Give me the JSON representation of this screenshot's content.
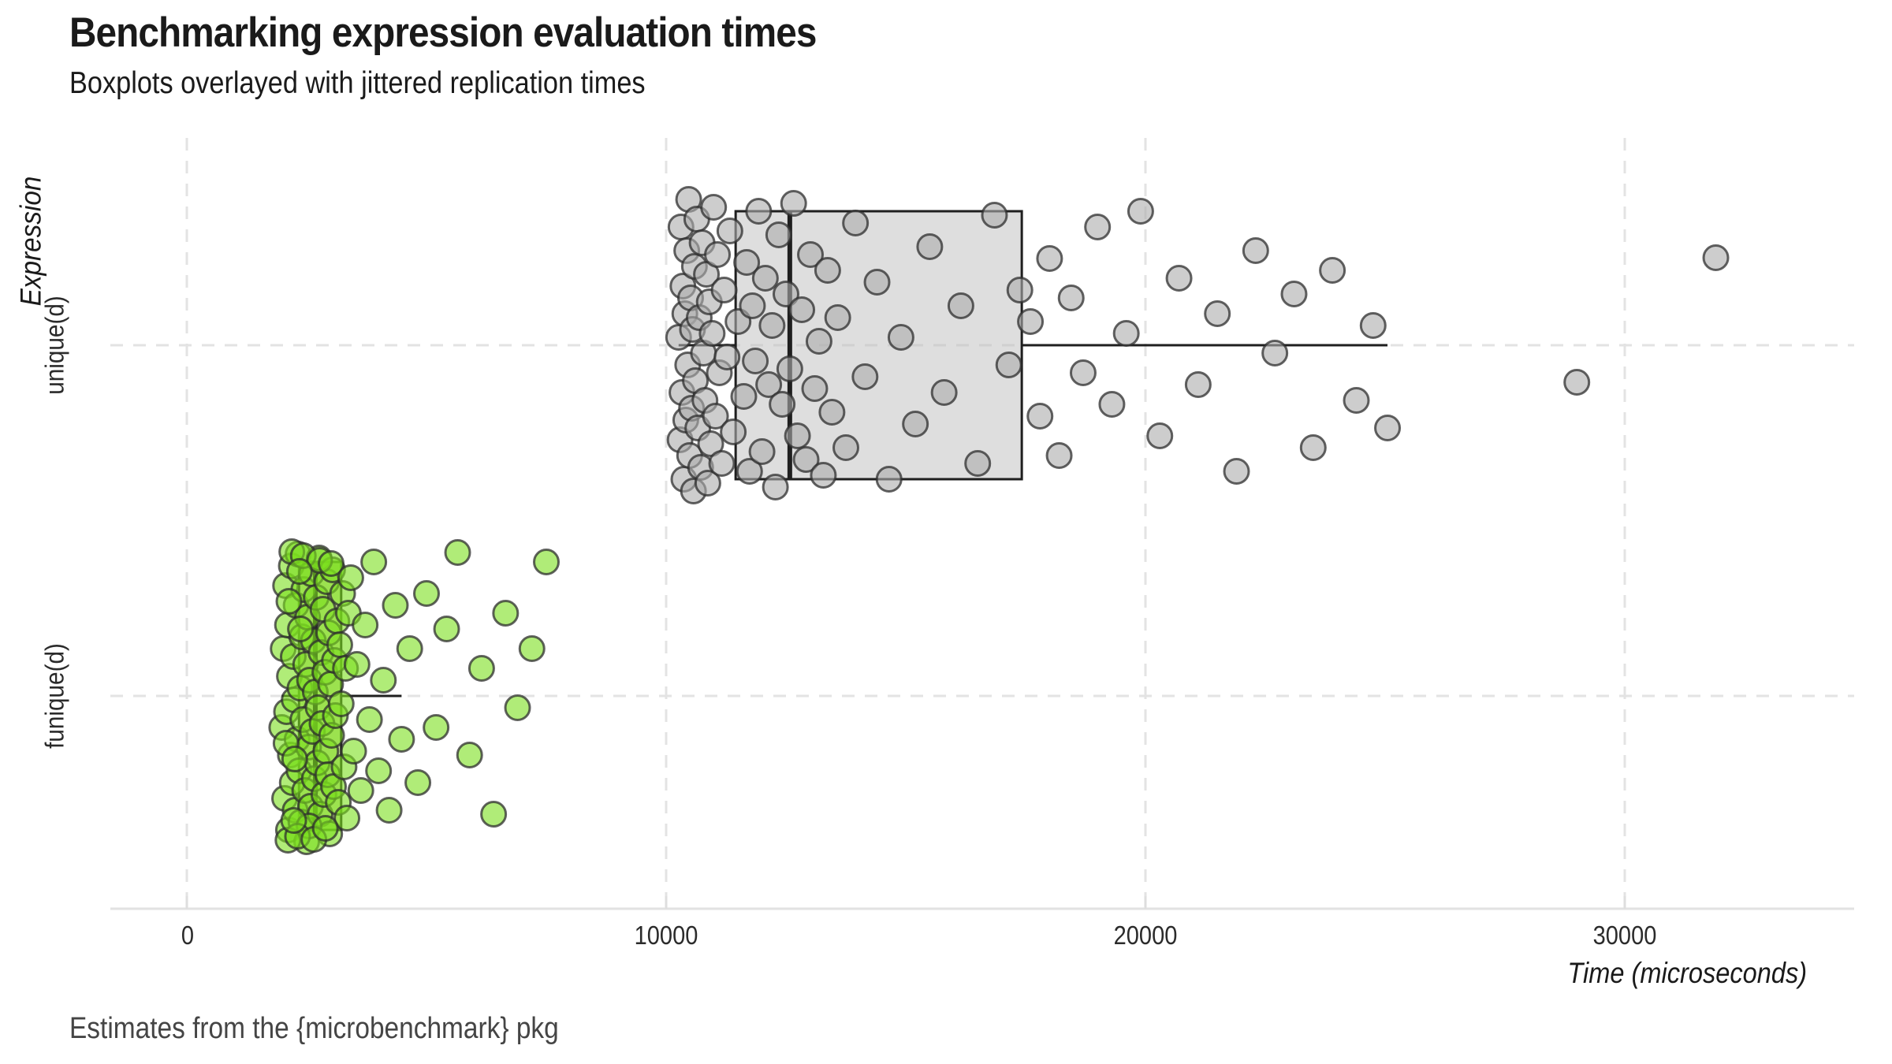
{
  "chart_data": {
    "type": "boxplot",
    "title": "Benchmarking expression evaluation times",
    "subtitle": "Boxplots overlayed with jittered replication times",
    "caption": "Estimates from the {microbenchmark} pkg",
    "xlabel": "Time (microseconds)",
    "ylabel": "Expression",
    "x_ticks": [
      0,
      10000,
      20000,
      30000
    ],
    "x_tick_labels": [
      "0",
      "10000",
      "20000",
      "30000"
    ],
    "xlim": [
      -1600,
      34800
    ],
    "grid": "dashed",
    "legend": "none",
    "categories": [
      "unique(d)",
      "funique(d)"
    ],
    "colors": {
      "grid": "#e3e3e3",
      "box_stroke": "#1f1f1f",
      "gray_fill": "#bebebe",
      "gray_point": "#acacac",
      "green_fill": "#9acd32",
      "green_point": "#7cdf1e",
      "caption_text": "#454545"
    },
    "series": [
      {
        "name": "unique(d)",
        "box_fill": "#bebebe",
        "point_fill": "#acacac",
        "box": {
          "whisker_low": 10260,
          "q1": 11450,
          "median": 12580,
          "q3": 17420,
          "whisker_high": 25050
        },
        "outliers": [
          29000,
          31900
        ],
        "points": [
          [
            10260,
            -10
          ],
          [
            10290,
            120
          ],
          [
            10310,
            -150
          ],
          [
            10330,
            60
          ],
          [
            10350,
            -75
          ],
          [
            10370,
            170
          ],
          [
            10390,
            -40
          ],
          [
            10410,
            95
          ],
          [
            10430,
            -120
          ],
          [
            10450,
            25
          ],
          [
            10470,
            -185
          ],
          [
            10490,
            140
          ],
          [
            10510,
            -60
          ],
          [
            10530,
            80
          ],
          [
            10550,
            -20
          ],
          [
            10570,
            185
          ],
          [
            10590,
            -100
          ],
          [
            10610,
            45
          ],
          [
            10640,
            -160
          ],
          [
            10660,
            105
          ],
          [
            10690,
            -35
          ],
          [
            10720,
            155
          ],
          [
            10750,
            -130
          ],
          [
            10780,
            10
          ],
          [
            10810,
            70
          ],
          [
            10840,
            -90
          ],
          [
            10870,
            175
          ],
          [
            10900,
            -55
          ],
          [
            10930,
            125
          ],
          [
            10960,
            -15
          ],
          [
            10990,
            -175
          ],
          [
            11030,
            90
          ],
          [
            11070,
            -115
          ],
          [
            11110,
            35
          ],
          [
            11160,
            150
          ],
          [
            11210,
            -70
          ],
          [
            11270,
            15
          ],
          [
            11330,
            -145
          ],
          [
            11400,
            110
          ],
          [
            11500,
            -30
          ],
          [
            11620,
            65
          ],
          [
            11680,
            -105
          ],
          [
            11740,
            160
          ],
          [
            11800,
            -50
          ],
          [
            11860,
            20
          ],
          [
            11930,
            -170
          ],
          [
            12000,
            135
          ],
          [
            12070,
            -85
          ],
          [
            12140,
            50
          ],
          [
            12210,
            -25
          ],
          [
            12280,
            180
          ],
          [
            12350,
            -140
          ],
          [
            12420,
            75
          ],
          [
            12500,
            -65
          ],
          [
            12580,
            30
          ],
          [
            12660,
            -180
          ],
          [
            12740,
            115
          ],
          [
            12830,
            -45
          ],
          [
            12920,
            145
          ],
          [
            13010,
            -115
          ],
          [
            13100,
            55
          ],
          [
            13190,
            -5
          ],
          [
            13280,
            165
          ],
          [
            13370,
            -95
          ],
          [
            13460,
            85
          ],
          [
            13580,
            -35
          ],
          [
            13750,
            130
          ],
          [
            13950,
            -155
          ],
          [
            14150,
            40
          ],
          [
            14400,
            -80
          ],
          [
            14650,
            170
          ],
          [
            14900,
            -10
          ],
          [
            15200,
            100
          ],
          [
            15500,
            -125
          ],
          [
            15800,
            60
          ],
          [
            16150,
            -50
          ],
          [
            16500,
            150
          ],
          [
            16850,
            -165
          ],
          [
            17150,
            25
          ],
          [
            17380,
            -70
          ],
          [
            17600,
            -30
          ],
          [
            17800,
            90
          ],
          [
            18000,
            -110
          ],
          [
            18200,
            140
          ],
          [
            18450,
            -60
          ],
          [
            18700,
            35
          ],
          [
            19000,
            -150
          ],
          [
            19300,
            75
          ],
          [
            19600,
            -15
          ],
          [
            19900,
            -170
          ],
          [
            20300,
            115
          ],
          [
            20700,
            -85
          ],
          [
            21100,
            50
          ],
          [
            21500,
            -40
          ],
          [
            21900,
            160
          ],
          [
            22300,
            -120
          ],
          [
            22700,
            10
          ],
          [
            23100,
            -65
          ],
          [
            23500,
            130
          ],
          [
            23900,
            -95
          ],
          [
            24400,
            70
          ],
          [
            24750,
            -25
          ],
          [
            25050,
            105
          ],
          [
            29000,
            47
          ],
          [
            31900,
            -111
          ]
        ]
      },
      {
        "name": "funique(d)",
        "box_fill": "#9acd32",
        "point_fill": "#7cdf1e",
        "box": {
          "whisker_low": 1980,
          "q1": 2340,
          "median": 2680,
          "q3": 3220,
          "whisker_high": 4480
        },
        "outliers": [
          4650,
          4820,
          5000,
          5200,
          5420,
          5650,
          5900,
          6150,
          6400,
          6650,
          6900,
          7200,
          7500
        ],
        "points": [
          [
            1980,
            40
          ],
          [
            2010,
            -60
          ],
          [
            2040,
            130
          ],
          [
            2060,
            -140
          ],
          [
            2080,
            20
          ],
          [
            2100,
            -90
          ],
          [
            2120,
            170
          ],
          [
            2140,
            -25
          ],
          [
            2160,
            75
          ],
          [
            2180,
            -165
          ],
          [
            2200,
            110
          ],
          [
            2220,
            -50
          ],
          [
            2240,
            5
          ],
          [
            2260,
            145
          ],
          [
            2280,
            -115
          ],
          [
            2300,
            55
          ],
          [
            2320,
            -180
          ],
          [
            2340,
            95
          ],
          [
            2360,
            -10
          ],
          [
            2380,
            160
          ],
          [
            2400,
            -75
          ],
          [
            2420,
            30
          ],
          [
            2440,
            -135
          ],
          [
            2460,
            120
          ],
          [
            2480,
            -40
          ],
          [
            2500,
            185
          ],
          [
            2520,
            -100
          ],
          [
            2540,
            65
          ],
          [
            2560,
            -20
          ],
          [
            2580,
            140
          ],
          [
            2600,
            -155
          ],
          [
            2620,
            45
          ],
          [
            2640,
            -70
          ],
          [
            2660,
            105
          ],
          [
            2680,
            -5
          ],
          [
            2700,
            -125
          ],
          [
            2720,
            85
          ],
          [
            2740,
            15
          ],
          [
            2760,
            -175
          ],
          [
            2780,
            150
          ],
          [
            2800,
            -55
          ],
          [
            2820,
            35
          ],
          [
            2840,
            -110
          ],
          [
            2860,
            125
          ],
          [
            2880,
            -30
          ],
          [
            2900,
            70
          ],
          [
            2920,
            -145
          ],
          [
            2940,
            100
          ],
          [
            2960,
            -80
          ],
          [
            2980,
            175
          ],
          [
            3000,
            -15
          ],
          [
            3020,
            50
          ],
          [
            3040,
            -160
          ],
          [
            3060,
            115
          ],
          [
            3080,
            -45
          ],
          [
            3100,
            25
          ],
          [
            3130,
            -95
          ],
          [
            3160,
            135
          ],
          [
            3190,
            -65
          ],
          [
            3220,
            10
          ],
          [
            3250,
            -130
          ],
          [
            3280,
            90
          ],
          [
            3310,
            -35
          ],
          [
            3340,
            155
          ],
          [
            3370,
            -105
          ],
          [
            2070,
            60
          ],
          [
            2130,
            -120
          ],
          [
            2250,
            80
          ],
          [
            2370,
            -85
          ],
          [
            2550,
            165
          ],
          [
            2110,
            183
          ],
          [
            2190,
            -183
          ],
          [
            2310,
            178
          ],
          [
            2430,
            -178
          ],
          [
            2650,
            182
          ],
          [
            2770,
            -172
          ],
          [
            2890,
            168
          ],
          [
            3010,
            -168
          ],
          [
            2230,
            158
          ],
          [
            2350,
            -158
          ],
          [
            3420,
            -150
          ],
          [
            3480,
            70
          ],
          [
            3550,
            -40
          ],
          [
            3630,
            120
          ],
          [
            3720,
            -90
          ],
          [
            3810,
            30
          ],
          [
            3900,
            -170
          ],
          [
            4000,
            95
          ],
          [
            4100,
            -20
          ],
          [
            4220,
            145
          ],
          [
            4350,
            -115
          ],
          [
            4480,
            55
          ],
          [
            4650,
            -60
          ],
          [
            4820,
            110
          ],
          [
            5000,
            -130
          ],
          [
            5200,
            40
          ],
          [
            5420,
            -85
          ],
          [
            5650,
            -182
          ],
          [
            5900,
            75
          ],
          [
            6150,
            -35
          ],
          [
            6400,
            150
          ],
          [
            6650,
            -105
          ],
          [
            6900,
            15
          ],
          [
            7200,
            -60
          ],
          [
            7500,
            -170
          ]
        ]
      }
    ]
  }
}
